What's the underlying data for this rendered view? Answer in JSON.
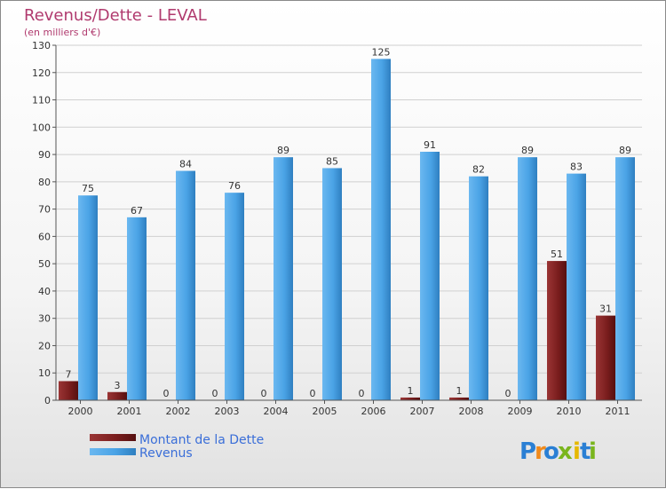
{
  "chart_data": {
    "type": "bar",
    "title": "Revenus/Dette - LEVAL",
    "subtitle": "(en milliers d'€)",
    "categories": [
      "2000",
      "2001",
      "2002",
      "2003",
      "2004",
      "2005",
      "2006",
      "2007",
      "2008",
      "2009",
      "2010",
      "2011"
    ],
    "series": [
      {
        "name": "Montant de la Dette",
        "values": [
          7,
          3,
          0,
          0,
          0,
          0,
          0,
          1,
          1,
          0,
          51,
          31
        ],
        "color": "#7b1e1e"
      },
      {
        "name": "Revenus",
        "values": [
          75,
          67,
          84,
          76,
          89,
          85,
          125,
          91,
          82,
          89,
          83,
          89
        ],
        "color": "#4aa3e6"
      }
    ],
    "ylim": [
      0,
      130
    ],
    "yticks": [
      0,
      10,
      20,
      30,
      40,
      50,
      60,
      70,
      80,
      90,
      100,
      110,
      120,
      130
    ],
    "grid": true,
    "legend": "bottom-left"
  },
  "brand": {
    "letters": [
      "P",
      "r",
      "o",
      "x",
      "i",
      "t",
      "i"
    ]
  }
}
